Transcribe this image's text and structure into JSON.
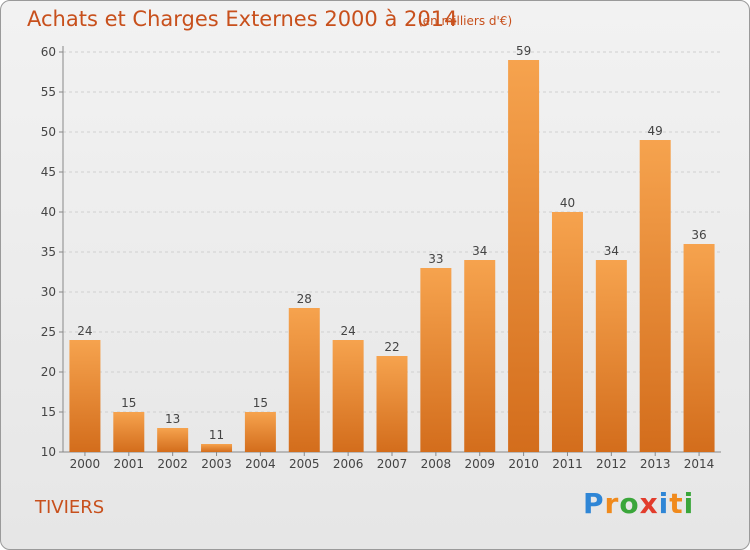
{
  "title": "Achats et Charges Externes 2000 à 2014",
  "subtitle": "(en milliers d'€)",
  "commune": "TIVIERS",
  "logo": {
    "letters": [
      "P",
      "r",
      "o",
      "x",
      "i",
      "t",
      "i"
    ],
    "colors": [
      "#2f86d6",
      "#f08a1c",
      "#3aa63a",
      "#e23c2c",
      "#2f86d6",
      "#f08a1c",
      "#3aa63a"
    ]
  },
  "colors": {
    "title": "#c8501c",
    "bar_light": "#f6a34e",
    "bar_dark": "#d36d1c"
  },
  "chart_data": {
    "type": "bar",
    "title": "Achats et Charges Externes 2000 à 2014",
    "subtitle": "(en milliers d'€)",
    "xlabel": "",
    "ylabel": "",
    "categories": [
      "2000",
      "2001",
      "2002",
      "2003",
      "2004",
      "2005",
      "2006",
      "2007",
      "2008",
      "2009",
      "2010",
      "2011",
      "2012",
      "2013",
      "2014"
    ],
    "values": [
      24,
      15,
      13,
      11,
      15,
      28,
      24,
      22,
      33,
      34,
      59,
      40,
      34,
      49,
      36
    ],
    "ylim": [
      10,
      60
    ],
    "yticks": [
      10,
      15,
      20,
      25,
      30,
      35,
      40,
      45,
      50,
      55,
      60
    ],
    "grid": true,
    "legend": "none"
  }
}
